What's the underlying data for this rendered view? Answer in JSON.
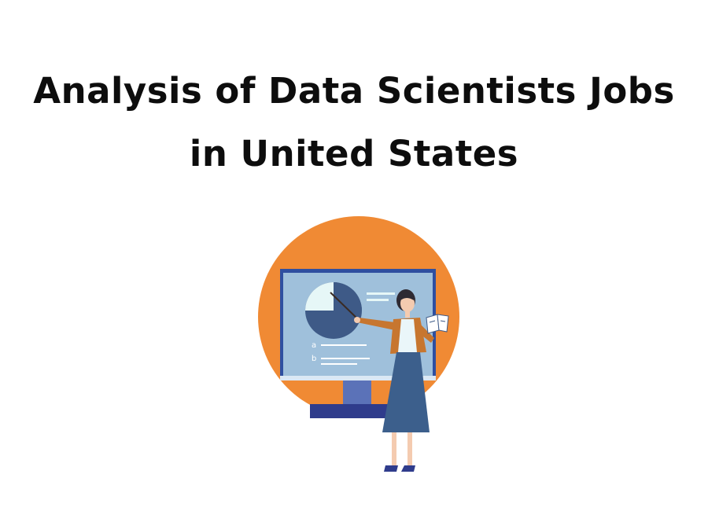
{
  "title": {
    "line1": "Analysis of Data Scientists Jobs",
    "line2": "in United States"
  },
  "illustration": {
    "icon": "presenter-icon",
    "board_labels": [
      "a",
      "b"
    ],
    "colors": {
      "circle": "#f08a34",
      "board": "#9fc0db",
      "board_frame": "#2f4fa0",
      "pie_dark": "#3e5a87",
      "pie_light": "#e6f7f7",
      "skirt": "#3c5f8c",
      "jacket": "#c7762f"
    }
  }
}
